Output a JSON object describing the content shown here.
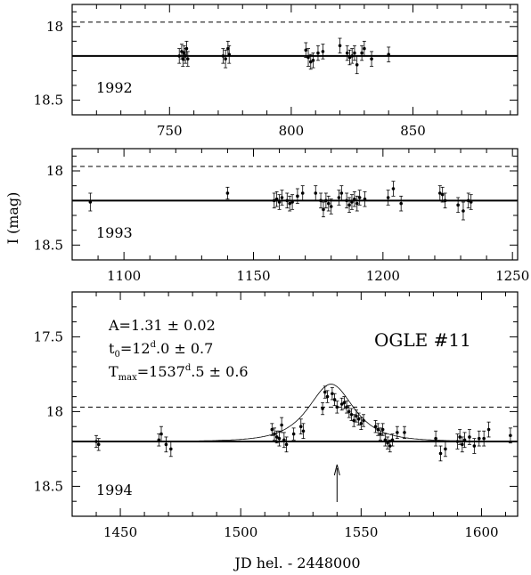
{
  "chart_data": [
    {
      "type": "scatter",
      "year": "1992",
      "xlim": [
        710,
        893
      ],
      "ylim": [
        18.6,
        17.85
      ],
      "xticks": [
        750,
        800,
        850
      ],
      "yticks": [
        18,
        18.5
      ],
      "baseline": 18.2,
      "threshold": 17.97,
      "points": [
        [
          754,
          18.2,
          0.05
        ],
        [
          755,
          18.17,
          0.05
        ],
        [
          755.5,
          18.22,
          0.05
        ],
        [
          756,
          18.18,
          0.05
        ],
        [
          756.5,
          18.2,
          0.05
        ],
        [
          757,
          18.15,
          0.05
        ],
        [
          757.5,
          18.22,
          0.05
        ],
        [
          772,
          18.2,
          0.05
        ],
        [
          773,
          18.22,
          0.06
        ],
        [
          774,
          18.15,
          0.05
        ],
        [
          774.5,
          18.19,
          0.06
        ],
        [
          806,
          18.16,
          0.05
        ],
        [
          807,
          18.21,
          0.06
        ],
        [
          808,
          18.24,
          0.05
        ],
        [
          809,
          18.23,
          0.05
        ],
        [
          811,
          18.18,
          0.05
        ],
        [
          813,
          18.17,
          0.05
        ],
        [
          820,
          18.13,
          0.05
        ],
        [
          823,
          18.18,
          0.05
        ],
        [
          824,
          18.21,
          0.05
        ],
        [
          825,
          18.2,
          0.05
        ],
        [
          826,
          18.18,
          0.05
        ],
        [
          827,
          18.26,
          0.06
        ],
        [
          829,
          18.18,
          0.05
        ],
        [
          830,
          18.15,
          0.05
        ],
        [
          833,
          18.22,
          0.05
        ],
        [
          840,
          18.19,
          0.05
        ]
      ]
    },
    {
      "type": "scatter",
      "year": "1993",
      "xlim": [
        1080,
        1252
      ],
      "ylim": [
        18.6,
        17.85
      ],
      "xticks": [
        1100,
        1150,
        1200,
        1250
      ],
      "yticks": [
        18,
        18.5
      ],
      "baseline": 18.2,
      "threshold": 17.97,
      "points": [
        [
          1087,
          18.21,
          0.06
        ],
        [
          1140,
          18.15,
          0.04
        ],
        [
          1158,
          18.2,
          0.05
        ],
        [
          1159,
          18.19,
          0.05
        ],
        [
          1160,
          18.21,
          0.05
        ],
        [
          1161,
          18.18,
          0.05
        ],
        [
          1163,
          18.2,
          0.05
        ],
        [
          1164,
          18.22,
          0.05
        ],
        [
          1165,
          18.21,
          0.05
        ],
        [
          1167,
          18.17,
          0.05
        ],
        [
          1169,
          18.15,
          0.05
        ],
        [
          1174,
          18.15,
          0.05
        ],
        [
          1176,
          18.2,
          0.05
        ],
        [
          1177,
          18.26,
          0.05
        ],
        [
          1178,
          18.2,
          0.05
        ],
        [
          1179,
          18.22,
          0.05
        ],
        [
          1180,
          18.24,
          0.05
        ],
        [
          1183,
          18.18,
          0.05
        ],
        [
          1184,
          18.15,
          0.05
        ],
        [
          1186,
          18.2,
          0.05
        ],
        [
          1187,
          18.23,
          0.05
        ],
        [
          1188,
          18.21,
          0.05
        ],
        [
          1189,
          18.19,
          0.05
        ],
        [
          1190,
          18.22,
          0.05
        ],
        [
          1191,
          18.18,
          0.05
        ],
        [
          1193,
          18.19,
          0.05
        ],
        [
          1202,
          18.18,
          0.05
        ],
        [
          1204,
          18.12,
          0.05
        ],
        [
          1207,
          18.22,
          0.05
        ],
        [
          1222,
          18.15,
          0.05
        ],
        [
          1223,
          18.16,
          0.05
        ],
        [
          1224,
          18.2,
          0.05
        ],
        [
          1229,
          18.23,
          0.05
        ],
        [
          1231,
          18.27,
          0.06
        ],
        [
          1233,
          18.2,
          0.05
        ],
        [
          1234,
          18.21,
          0.05
        ]
      ]
    },
    {
      "type": "scatter",
      "year": "1994",
      "xlim": [
        1430,
        1615
      ],
      "ylim": [
        18.7,
        17.2
      ],
      "xticks": [
        1450,
        1500,
        1550,
        1600
      ],
      "yticks": [
        17.5,
        18,
        18.5
      ],
      "baseline": 18.2,
      "threshold": 17.97,
      "annotations": {
        "amplitude": "A=1.31 ± 0.02",
        "t0_prefix": "t",
        "t0_sub": "0",
        "t0_value": "=12",
        "t0_sup": "d",
        "t0_rest": ".0 ± 0.7",
        "tmax_prefix": "T",
        "tmax_sub": "max",
        "tmax_value": "=1537",
        "tmax_sup": "d",
        "tmax_rest": ".5 ± 0.6",
        "event_label": "OGLE #11"
      },
      "arrow_x": 1540,
      "model": {
        "t0": 1537.5,
        "tE": 12,
        "umin": 0.9,
        "base": 18.2
      },
      "points": [
        [
          1440,
          18.2,
          0.04
        ],
        [
          1441,
          18.22,
          0.04
        ],
        [
          1466,
          18.19,
          0.04
        ],
        [
          1467,
          18.15,
          0.05
        ],
        [
          1469,
          18.22,
          0.05
        ],
        [
          1471,
          18.25,
          0.05
        ],
        [
          1513,
          18.12,
          0.04
        ],
        [
          1514,
          18.15,
          0.04
        ],
        [
          1515,
          18.17,
          0.04
        ],
        [
          1516,
          18.18,
          0.05
        ],
        [
          1517,
          18.09,
          0.05
        ],
        [
          1518,
          18.19,
          0.05
        ],
        [
          1519,
          18.22,
          0.05
        ],
        [
          1522,
          18.15,
          0.04
        ],
        [
          1525,
          18.1,
          0.05
        ],
        [
          1526,
          18.13,
          0.05
        ],
        [
          1534,
          17.98,
          0.04
        ],
        [
          1535,
          17.87,
          0.04
        ],
        [
          1536,
          17.9,
          0.04
        ],
        [
          1538,
          17.88,
          0.04
        ],
        [
          1539,
          17.92,
          0.04
        ],
        [
          1540,
          17.97,
          0.04
        ],
        [
          1542,
          17.95,
          0.04
        ],
        [
          1543,
          17.94,
          0.04
        ],
        [
          1544,
          17.97,
          0.04
        ],
        [
          1545,
          18.0,
          0.04
        ],
        [
          1546,
          18.02,
          0.04
        ],
        [
          1547,
          18.06,
          0.04
        ],
        [
          1548,
          18.03,
          0.04
        ],
        [
          1549,
          18.05,
          0.04
        ],
        [
          1550,
          18.08,
          0.04
        ],
        [
          1551,
          18.06,
          0.04
        ],
        [
          1556,
          18.1,
          0.04
        ],
        [
          1557,
          18.12,
          0.04
        ],
        [
          1558,
          18.15,
          0.04
        ],
        [
          1559,
          18.12,
          0.04
        ],
        [
          1560,
          18.19,
          0.04
        ],
        [
          1561,
          18.21,
          0.04
        ],
        [
          1562,
          18.23,
          0.04
        ],
        [
          1563,
          18.19,
          0.04
        ],
        [
          1565,
          18.14,
          0.04
        ],
        [
          1568,
          18.14,
          0.04
        ],
        [
          1581,
          18.18,
          0.05
        ],
        [
          1583,
          18.28,
          0.05
        ],
        [
          1585,
          18.25,
          0.05
        ],
        [
          1590,
          18.2,
          0.05
        ],
        [
          1591,
          18.17,
          0.05
        ],
        [
          1592,
          18.22,
          0.05
        ],
        [
          1593,
          18.19,
          0.05
        ],
        [
          1595,
          18.17,
          0.05
        ],
        [
          1597,
          18.23,
          0.05
        ],
        [
          1599,
          18.18,
          0.05
        ],
        [
          1601,
          18.18,
          0.05
        ],
        [
          1603,
          18.12,
          0.05
        ],
        [
          1612,
          18.16,
          0.05
        ]
      ]
    }
  ],
  "axis": {
    "xlabel": "JD hel. - 2448000",
    "ylabel": "I (mag)"
  }
}
